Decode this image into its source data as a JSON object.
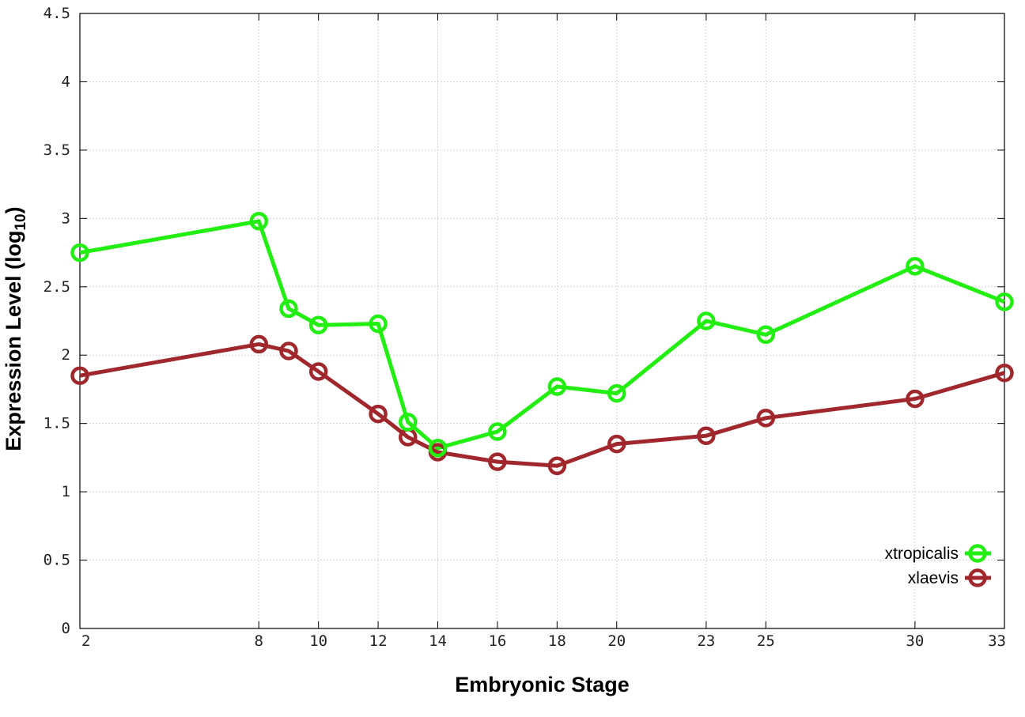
{
  "chart_data": {
    "type": "line",
    "xlabel": "Embryonic Stage",
    "ylabel_main": "Expression Level (log",
    "ylabel_sub": "10",
    "ylabel_close": ")",
    "x_ticks": [
      2,
      8,
      10,
      12,
      14,
      16,
      18,
      20,
      23,
      25,
      30,
      33
    ],
    "y_ticks": [
      "0",
      "0.5",
      "1",
      "1.5",
      "2",
      "2.5",
      "3",
      "3.5",
      "4",
      "4.5"
    ],
    "categories": [
      2,
      8,
      9,
      10,
      12,
      13,
      14,
      16,
      18,
      20,
      23,
      25,
      30,
      33
    ],
    "xlim": [
      2,
      33
    ],
    "ylim": [
      0,
      4.5
    ],
    "grid": true,
    "legend_position": "bottom-right",
    "series": [
      {
        "name": "xtropicalis",
        "color": "#22ee11",
        "values": [
          2.75,
          2.98,
          2.34,
          2.22,
          2.23,
          1.51,
          1.32,
          1.44,
          1.77,
          1.72,
          2.25,
          2.15,
          2.65,
          2.39
        ]
      },
      {
        "name": "xlaevis",
        "color": "#a0282d",
        "values": [
          1.85,
          2.08,
          2.03,
          1.88,
          1.57,
          1.4,
          1.29,
          1.22,
          1.19,
          1.35,
          1.41,
          1.54,
          1.68,
          1.87
        ]
      }
    ]
  }
}
